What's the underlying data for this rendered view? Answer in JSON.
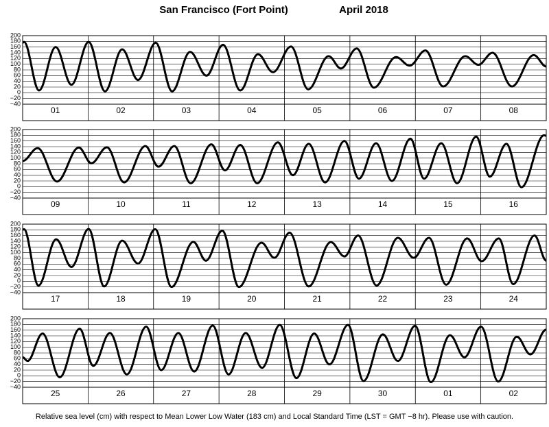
{
  "title": "San Francisco (Fort Point)",
  "month_year": "April   2018",
  "footnote": "Relative sea level (cm) with respect to Mean Lower Low Water (183 cm) and Local Standard Time (LST = GMT −8 hr). Please use with caution.",
  "chart_data": [
    {
      "type": "line",
      "categories": [
        "01",
        "02",
        "03",
        "04",
        "05",
        "06",
        "07",
        "08"
      ],
      "xlim": [
        0,
        192
      ],
      "xticks": [
        0,
        24,
        48,
        72,
        96,
        120,
        144,
        168,
        192
      ],
      "ylim": [
        -40,
        200
      ],
      "yticks": [
        {
          "value": -40,
          "label": "−40"
        },
        {
          "value": -20,
          "label": "−20"
        },
        0,
        20,
        40,
        60,
        80,
        100,
        120,
        140,
        160,
        180,
        200
      ],
      "color": "#000000",
      "x": [
        0,
        0.5,
        6.0,
        12.1,
        17.9,
        24.2,
        30.2,
        36.5,
        42.3,
        48.8,
        54.8,
        61.4,
        67.4,
        73.5,
        79.8,
        86.3,
        91.8,
        98.4,
        104.7,
        112.2,
        116.7,
        122.5,
        128.8,
        136.9,
        141.9,
        147.7,
        154.2,
        162.3,
        167.1,
        172.3,
        179.4,
        187.4,
        192
      ],
      "values": [
        175,
        178,
        8,
        160,
        28,
        178,
        5,
        152,
        45,
        175,
        5,
        143,
        60,
        168,
        8,
        135,
        72,
        162,
        12,
        128,
        85,
        155,
        18,
        125,
        95,
        148,
        22,
        128,
        98,
        140,
        22,
        132,
        92
      ]
    },
    {
      "type": "line",
      "categories": [
        "09",
        "10",
        "11",
        "12",
        "13",
        "14",
        "15",
        "16"
      ],
      "xlim": [
        0,
        192
      ],
      "xticks": [
        0,
        24,
        48,
        72,
        96,
        120,
        144,
        168,
        192
      ],
      "ylim": [
        -40,
        200
      ],
      "yticks": [
        {
          "value": -40,
          "label": "−40"
        },
        {
          "value": -20,
          "label": "−20"
        },
        0,
        20,
        40,
        60,
        80,
        100,
        120,
        140,
        160,
        180,
        200
      ],
      "color": "#000000",
      "x": [
        0,
        5.5,
        12.6,
        20.6,
        25.2,
        30.9,
        37.2,
        45.0,
        49.8,
        55.6,
        61.6,
        69.2,
        74.2,
        79.8,
        86.0,
        93.6,
        99.1,
        104.9,
        110.9,
        118.0,
        123.3,
        129.6,
        135.4,
        142.2,
        147.2,
        153.5,
        159.3,
        166.3,
        171.3,
        177.4,
        182.9,
        191.2,
        192
      ],
      "values": [
        90,
        135,
        18,
        137,
        82,
        138,
        15,
        142,
        70,
        142,
        12,
        148,
        57,
        146,
        12,
        155,
        40,
        150,
        15,
        160,
        28,
        152,
        20,
        168,
        28,
        152,
        12,
        175,
        35,
        150,
        -2,
        180,
        178
      ]
    },
    {
      "type": "line",
      "categories": [
        "17",
        "18",
        "19",
        "20",
        "21",
        "22",
        "23",
        "24"
      ],
      "xlim": [
        0,
        192
      ],
      "xticks": [
        0,
        24,
        48,
        72,
        96,
        120,
        144,
        168,
        192
      ],
      "ylim": [
        -40,
        200
      ],
      "yticks": [
        {
          "value": -40,
          "label": "−40"
        },
        {
          "value": -20,
          "label": "−20"
        },
        0,
        20,
        40,
        60,
        80,
        100,
        120,
        140,
        160,
        180,
        200
      ],
      "color": "#000000",
      "x": [
        0,
        0.5,
        5.8,
        12.3,
        17.9,
        24.2,
        29.9,
        36.5,
        42.3,
        48.6,
        54.6,
        62.6,
        67.2,
        73.2,
        79.3,
        87.6,
        92.3,
        97.9,
        104.9,
        113.0,
        118.0,
        123.0,
        129.8,
        137.6,
        143.4,
        149.0,
        155.3,
        163.0,
        168.3,
        174.6,
        179.9,
        187.7,
        192
      ],
      "values": [
        180,
        182,
        -15,
        147,
        50,
        183,
        -18,
        142,
        62,
        182,
        -20,
        138,
        72,
        177,
        -20,
        135,
        82,
        170,
        -18,
        137,
        87,
        160,
        -15,
        152,
        82,
        152,
        -12,
        150,
        70,
        150,
        -10,
        160,
        72
      ]
    },
    {
      "type": "line",
      "categories": [
        "25",
        "26",
        "27",
        "28",
        "29",
        "30",
        "01",
        "02"
      ],
      "xlim": [
        0,
        192
      ],
      "xticks": [
        0,
        24,
        48,
        72,
        96,
        120,
        144,
        168,
        192
      ],
      "ylim": [
        -40,
        200
      ],
      "yticks": [
        {
          "value": -40,
          "label": "−40"
        },
        {
          "value": -20,
          "label": "−20"
        },
        0,
        20,
        40,
        60,
        80,
        100,
        120,
        140,
        160,
        180,
        200
      ],
      "color": "#000000",
      "x": [
        0,
        1.8,
        7.3,
        13.6,
        20.9,
        25.9,
        32.0,
        38.2,
        45.3,
        50.8,
        57.1,
        62.9,
        69.7,
        75.5,
        81.8,
        87.8,
        94.3,
        100.4,
        106.9,
        112.5,
        119.3,
        125.0,
        132.1,
        137.6,
        143.9,
        149.7,
        156.7,
        162.0,
        168.1,
        174.4,
        181.2,
        186.2,
        192
      ],
      "values": [
        65,
        52,
        148,
        -5,
        165,
        35,
        150,
        5,
        172,
        20,
        150,
        15,
        176,
        5,
        150,
        28,
        178,
        -8,
        148,
        40,
        178,
        -18,
        145,
        52,
        175,
        -22,
        142,
        65,
        172,
        -20,
        137,
        75,
        162
      ]
    }
  ]
}
